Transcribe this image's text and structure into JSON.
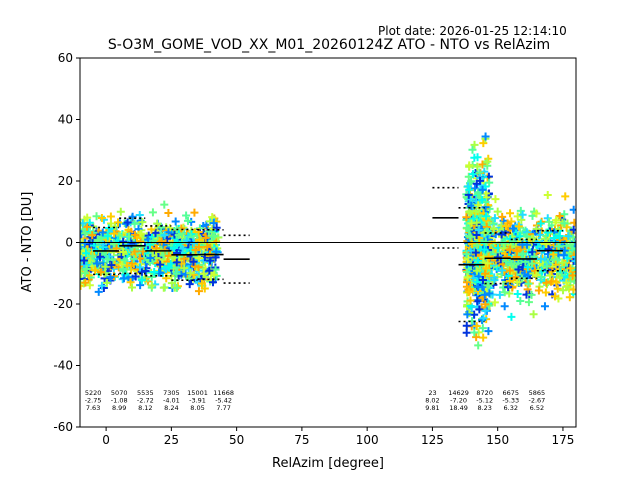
{
  "plot_date": "Plot date: 2026-01-25 12:14:10",
  "chart_data": {
    "type": "scatter",
    "title": "S-O3M_GOME_VOD_XX_M01_20260124Z ATO - NTO vs RelAzim",
    "xlabel": "RelAzim [degree]",
    "ylabel": "ATO - NTO [DU]",
    "xlim": [
      -10,
      180
    ],
    "ylim": [
      -60,
      60
    ],
    "xticks": [
      0,
      25,
      50,
      75,
      100,
      125,
      150,
      175
    ],
    "yticks": [
      -60,
      -40,
      -20,
      0,
      20,
      40,
      60
    ],
    "reference_line_y": 0,
    "grid": false,
    "bins": [
      {
        "x": 0,
        "count": "5220",
        "mean": -2.75,
        "std": 7.63,
        "mean_label": "-2.75",
        "std_label": "7.63"
      },
      {
        "x": 10,
        "count": "5070",
        "mean": -1.08,
        "std": 8.99,
        "mean_label": "-1.08",
        "std_label": "8.99"
      },
      {
        "x": 20,
        "count": "5535",
        "mean": -2.72,
        "std": 8.12,
        "mean_label": "-2.72",
        "std_label": "8.12"
      },
      {
        "x": 30,
        "count": "7305",
        "mean": -4.01,
        "std": 8.24,
        "mean_label": "-4.01",
        "std_label": "8.24"
      },
      {
        "x": 40,
        "count": "15001",
        "mean": -3.91,
        "std": 8.05,
        "mean_label": "-3.91",
        "std_label": "8.05"
      },
      {
        "x": 50,
        "count": "11668",
        "mean": -5.42,
        "std": 7.77,
        "mean_label": "-5.42",
        "std_label": "7.77"
      },
      {
        "x": 130,
        "count": "23",
        "mean": 8.02,
        "std": 9.81,
        "mean_label": "8.02",
        "std_label": "9.81"
      },
      {
        "x": 140,
        "count": "14629",
        "mean": -7.2,
        "std": 18.49,
        "mean_label": "-7.20",
        "std_label": "18.49"
      },
      {
        "x": 150,
        "count": "8720",
        "mean": -5.12,
        "std": 8.23,
        "mean_label": "-5.12",
        "std_label": "8.23"
      },
      {
        "x": 160,
        "count": "6675",
        "mean": -5.33,
        "std": 6.32,
        "mean_label": "-5.33",
        "std_label": "6.32"
      },
      {
        "x": 170,
        "count": "5865",
        "mean": -2.67,
        "std": 6.52,
        "mean_label": "-2.67",
        "std_label": "6.52"
      }
    ],
    "scatter_clusters": [
      {
        "xmin": -10,
        "xmax": 43,
        "ymean": -3,
        "ysd": 9,
        "n": 900
      },
      {
        "xmin": 138,
        "xmax": 180,
        "ymean": -4,
        "ysd": 11,
        "n": 800
      },
      {
        "xmin": 138,
        "xmax": 147,
        "ymean": 0,
        "ysd": 22,
        "n": 500
      }
    ],
    "colors": [
      "#55ff99",
      "#66ff88",
      "#00ffee",
      "#22ddff",
      "#aaff44",
      "#ccff33",
      "#ffcc00",
      "#ffaa00",
      "#0088ff",
      "#0033dd"
    ]
  }
}
